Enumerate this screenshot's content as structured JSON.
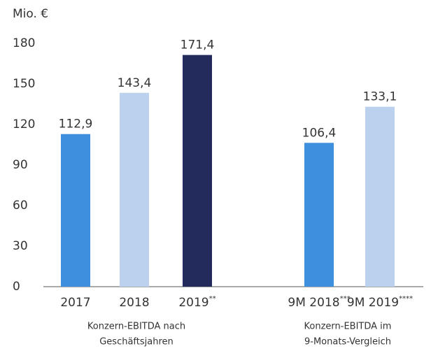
{
  "chart_data": {
    "type": "bar",
    "y_label": "Mio. €",
    "categories": [
      "2017",
      "2018",
      "2019",
      null,
      "9M 2018",
      "9M 2019"
    ],
    "footnotes": [
      null,
      null,
      "**",
      null,
      "***",
      "****"
    ],
    "values": [
      112.9,
      143.4,
      171.4,
      null,
      106.4,
      133.1
    ],
    "value_labels": [
      "112,9",
      "143,4",
      "171,4",
      null,
      "106,4",
      "133,1"
    ],
    "colors": [
      "#3f8fdf",
      "#bcd1ee",
      "#232a5c",
      null,
      "#3f8fdf",
      "#bcd1ee"
    ],
    "ylim": [
      0,
      180
    ],
    "yticks": [
      0,
      30,
      60,
      90,
      120,
      150,
      180
    ],
    "groups": [
      [
        "Konzern-EBITDA nach",
        "Geschäftsjahren"
      ],
      [
        "Konzern-EBITDA im",
        "9-Monats-Vergleich"
      ]
    ]
  }
}
